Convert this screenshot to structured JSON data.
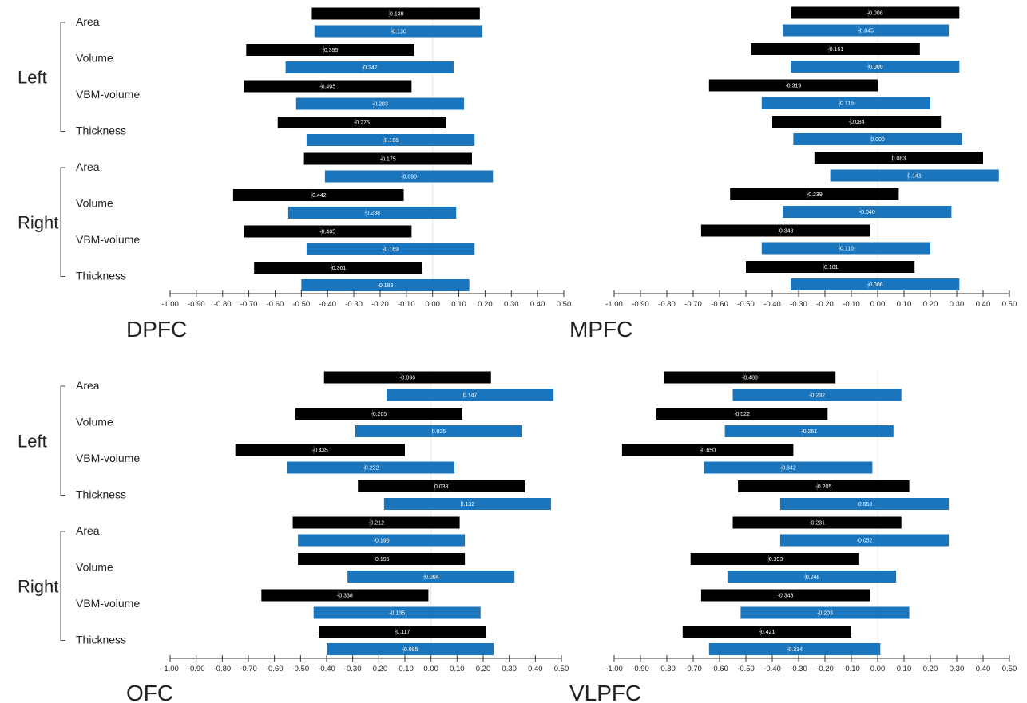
{
  "colors": {
    "first_series": "#000000",
    "second_series": "#1b75bc"
  },
  "row_labels": [
    "Area",
    "Volume",
    "VBM-volume",
    "Thickness"
  ],
  "group_labels": [
    "Left",
    "Right"
  ],
  "chart_data": [
    {
      "type": "bar",
      "orientation": "horizontal",
      "title": "DPFC",
      "x_ticks": [
        "-1.00",
        "-0.90",
        "-0.80",
        "-0.70",
        "-0.60",
        "-0.50",
        "-0.40",
        "-0.30",
        "-0.20",
        "-0.10",
        "0.00",
        "0.10",
        "0.20",
        "0.30",
        "0.40",
        "0.50"
      ],
      "xlim": [
        -1.0,
        0.5
      ],
      "rows": [
        {
          "group": "Left",
          "label": "Area",
          "bars": [
            {
              "series": 1,
              "low": -0.46,
              "high": 0.18,
              "value": "-0.139"
            },
            {
              "series": 2,
              "low": -0.45,
              "high": 0.19,
              "value": "-0.130"
            }
          ]
        },
        {
          "group": "Left",
          "label": "Volume",
          "bars": [
            {
              "series": 1,
              "low": -0.71,
              "high": -0.07,
              "value": "-0.395"
            },
            {
              "series": 2,
              "low": -0.56,
              "high": 0.08,
              "value": "-0.247"
            }
          ]
        },
        {
          "group": "Left",
          "label": "VBM-volume",
          "bars": [
            {
              "series": 1,
              "low": -0.72,
              "high": -0.08,
              "value": "-0.405"
            },
            {
              "series": 2,
              "low": -0.52,
              "high": 0.12,
              "value": "-0.203"
            }
          ]
        },
        {
          "group": "Left",
          "label": "Thickness",
          "bars": [
            {
              "series": 1,
              "low": -0.59,
              "high": 0.05,
              "value": "-0.275"
            },
            {
              "series": 2,
              "low": -0.48,
              "high": 0.16,
              "value": "-0.166"
            }
          ]
        },
        {
          "group": "Right",
          "label": "Area",
          "bars": [
            {
              "series": 1,
              "low": -0.49,
              "high": 0.15,
              "value": "-0.175"
            },
            {
              "series": 2,
              "low": -0.41,
              "high": 0.23,
              "value": "-0.090"
            }
          ]
        },
        {
          "group": "Right",
          "label": "Volume",
          "bars": [
            {
              "series": 1,
              "low": -0.76,
              "high": -0.11,
              "value": "-0.442"
            },
            {
              "series": 2,
              "low": -0.55,
              "high": 0.09,
              "value": "-0.238"
            }
          ]
        },
        {
          "group": "Right",
          "label": "VBM-volume",
          "bars": [
            {
              "series": 1,
              "low": -0.72,
              "high": -0.08,
              "value": "-0.405"
            },
            {
              "series": 2,
              "low": -0.48,
              "high": 0.16,
              "value": "-0.169"
            }
          ]
        },
        {
          "group": "Right",
          "label": "Thickness",
          "bars": [
            {
              "series": 1,
              "low": -0.68,
              "high": -0.04,
              "value": "-0.361"
            },
            {
              "series": 2,
              "low": -0.5,
              "high": 0.14,
              "value": "-0.183"
            }
          ]
        }
      ]
    },
    {
      "type": "bar",
      "orientation": "horizontal",
      "title": "MPFC",
      "x_ticks": [
        "-1.00",
        "-0.90",
        "-0.80",
        "-0.70",
        "-0.60",
        "-0.50",
        "-0.40",
        "-0.30",
        "-0.20",
        "-0.10",
        "0.00",
        "0.10",
        "0.20",
        "0.30",
        "0.40",
        "0.50"
      ],
      "xlim": [
        -1.0,
        0.5
      ],
      "rows": [
        {
          "group": "Left",
          "label": "Area",
          "bars": [
            {
              "series": 1,
              "low": -0.33,
              "high": 0.31,
              "value": "-0.008"
            },
            {
              "series": 2,
              "low": -0.36,
              "high": 0.27,
              "value": "-0.045"
            }
          ]
        },
        {
          "group": "Left",
          "label": "Volume",
          "bars": [
            {
              "series": 1,
              "low": -0.48,
              "high": 0.16,
              "value": "-0.161"
            },
            {
              "series": 2,
              "low": -0.33,
              "high": 0.31,
              "value": "-0.009"
            }
          ]
        },
        {
          "group": "Left",
          "label": "VBM-volume",
          "bars": [
            {
              "series": 1,
              "low": -0.64,
              "high": 0.0,
              "value": "-0.319"
            },
            {
              "series": 2,
              "low": -0.44,
              "high": 0.2,
              "value": "-0.116"
            }
          ]
        },
        {
          "group": "Left",
          "label": "Thickness",
          "bars": [
            {
              "series": 1,
              "low": -0.4,
              "high": 0.24,
              "value": "-0.084"
            },
            {
              "series": 2,
              "low": -0.32,
              "high": 0.32,
              "value": "0.000"
            }
          ]
        },
        {
          "group": "Right",
          "label": "Area",
          "bars": [
            {
              "series": 1,
              "low": -0.24,
              "high": 0.4,
              "value": "0.083"
            },
            {
              "series": 2,
              "low": -0.18,
              "high": 0.46,
              "value": "0.141"
            }
          ]
        },
        {
          "group": "Right",
          "label": "Volume",
          "bars": [
            {
              "series": 1,
              "low": -0.56,
              "high": 0.08,
              "value": "-0.239"
            },
            {
              "series": 2,
              "low": -0.36,
              "high": 0.28,
              "value": "-0.040"
            }
          ]
        },
        {
          "group": "Right",
          "label": "VBM-volume",
          "bars": [
            {
              "series": 1,
              "low": -0.67,
              "high": -0.03,
              "value": "-0.348"
            },
            {
              "series": 2,
              "low": -0.44,
              "high": 0.2,
              "value": "-0.116"
            }
          ]
        },
        {
          "group": "Right",
          "label": "Thickness",
          "bars": [
            {
              "series": 1,
              "low": -0.5,
              "high": 0.14,
              "value": "-0.181"
            },
            {
              "series": 2,
              "low": -0.33,
              "high": 0.31,
              "value": "-0.006"
            }
          ]
        }
      ]
    },
    {
      "type": "bar",
      "orientation": "horizontal",
      "title": "OFC",
      "x_ticks": [
        "-1.00",
        "-0.90",
        "-0.80",
        "-0.70",
        "-0.60",
        "-0.50",
        "-0.40",
        "-0.30",
        "-0.20",
        "-0.10",
        "0.00",
        "0.10",
        "0.20",
        "0.30",
        "0.40",
        "0.50"
      ],
      "xlim": [
        -1.0,
        0.5
      ],
      "rows": [
        {
          "group": "Left",
          "label": "Area",
          "bars": [
            {
              "series": 1,
              "low": -0.41,
              "high": 0.23,
              "value": "-0.096"
            },
            {
              "series": 2,
              "low": -0.17,
              "high": 0.47,
              "value": "0.147"
            }
          ]
        },
        {
          "group": "Left",
          "label": "Volume",
          "bars": [
            {
              "series": 1,
              "low": -0.52,
              "high": 0.12,
              "value": "-0.205"
            },
            {
              "series": 2,
              "low": -0.29,
              "high": 0.35,
              "value": "0.025"
            }
          ]
        },
        {
          "group": "Left",
          "label": "VBM-volume",
          "bars": [
            {
              "series": 1,
              "low": -0.75,
              "high": -0.1,
              "value": "-0.435"
            },
            {
              "series": 2,
              "low": -0.55,
              "high": 0.09,
              "value": "-0.232"
            }
          ]
        },
        {
          "group": "Left",
          "label": "Thickness",
          "bars": [
            {
              "series": 1,
              "low": -0.28,
              "high": 0.36,
              "value": "0.038"
            },
            {
              "series": 2,
              "low": -0.18,
              "high": 0.46,
              "value": "0.132"
            }
          ]
        },
        {
          "group": "Right",
          "label": "Area",
          "bars": [
            {
              "series": 1,
              "low": -0.53,
              "high": 0.11,
              "value": "-0.212"
            },
            {
              "series": 2,
              "low": -0.51,
              "high": 0.13,
              "value": "-0.196"
            }
          ]
        },
        {
          "group": "Right",
          "label": "Volume",
          "bars": [
            {
              "series": 1,
              "low": -0.51,
              "high": 0.13,
              "value": "-0.195"
            },
            {
              "series": 2,
              "low": -0.32,
              "high": 0.32,
              "value": "-0.004"
            }
          ]
        },
        {
          "group": "Right",
          "label": "VBM-volume",
          "bars": [
            {
              "series": 1,
              "low": -0.65,
              "high": -0.01,
              "value": "-0.338"
            },
            {
              "series": 2,
              "low": -0.45,
              "high": 0.19,
              "value": "-0.135"
            }
          ]
        },
        {
          "group": "Right",
          "label": "Thickness",
          "bars": [
            {
              "series": 1,
              "low": -0.43,
              "high": 0.21,
              "value": "-0.117"
            },
            {
              "series": 2,
              "low": -0.4,
              "high": 0.24,
              "value": "-0.085"
            }
          ]
        }
      ]
    },
    {
      "type": "bar",
      "orientation": "horizontal",
      "title": "VLPFC",
      "x_ticks": [
        "-1.00",
        "-0.90",
        "-0.80",
        "-0.70",
        "-0.60",
        "-0.50",
        "-0.40",
        "-0.30",
        "-0.20",
        "-0.10",
        "0.00",
        "0.10",
        "0.20",
        "0.30",
        "0.40",
        "0.50"
      ],
      "xlim": [
        -1.0,
        0.5
      ],
      "rows": [
        {
          "group": "Left",
          "label": "Area",
          "bars": [
            {
              "series": 1,
              "low": -0.81,
              "high": -0.16,
              "value": "-0.488"
            },
            {
              "series": 2,
              "low": -0.55,
              "high": 0.09,
              "value": "-0.232"
            }
          ]
        },
        {
          "group": "Left",
          "label": "Volume",
          "bars": [
            {
              "series": 1,
              "low": -0.84,
              "high": -0.19,
              "value": "-0.522"
            },
            {
              "series": 2,
              "low": -0.58,
              "high": 0.06,
              "value": "-0.261"
            }
          ]
        },
        {
          "group": "Left",
          "label": "VBM-volume",
          "bars": [
            {
              "series": 1,
              "low": -0.97,
              "high": -0.32,
              "value": "-0.650"
            },
            {
              "series": 2,
              "low": -0.66,
              "high": -0.02,
              "value": "-0.342"
            }
          ]
        },
        {
          "group": "Left",
          "label": "Thickness",
          "bars": [
            {
              "series": 1,
              "low": -0.53,
              "high": 0.12,
              "value": "-0.205"
            },
            {
              "series": 2,
              "low": -0.37,
              "high": 0.27,
              "value": "-0.050"
            }
          ]
        },
        {
          "group": "Right",
          "label": "Area",
          "bars": [
            {
              "series": 1,
              "low": -0.55,
              "high": 0.09,
              "value": "-0.231"
            },
            {
              "series": 2,
              "low": -0.37,
              "high": 0.27,
              "value": "-0.052"
            }
          ]
        },
        {
          "group": "Right",
          "label": "Volume",
          "bars": [
            {
              "series": 1,
              "low": -0.71,
              "high": -0.07,
              "value": "-0.393"
            },
            {
              "series": 2,
              "low": -0.57,
              "high": 0.07,
              "value": "-0.248"
            }
          ]
        },
        {
          "group": "Right",
          "label": "VBM-volume",
          "bars": [
            {
              "series": 1,
              "low": -0.67,
              "high": -0.03,
              "value": "-0.348"
            },
            {
              "series": 2,
              "low": -0.52,
              "high": 0.12,
              "value": "-0.203"
            }
          ]
        },
        {
          "group": "Right",
          "label": "Thickness",
          "bars": [
            {
              "series": 1,
              "low": -0.74,
              "high": -0.1,
              "value": "-0.421"
            },
            {
              "series": 2,
              "low": -0.64,
              "high": 0.01,
              "value": "-0.314"
            }
          ]
        }
      ]
    }
  ]
}
